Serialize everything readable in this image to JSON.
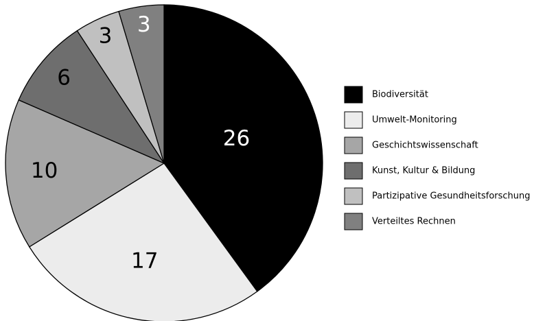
{
  "chart_data": {
    "type": "pie",
    "categories": [
      "Biodiversität",
      "Umwelt-Monitoring",
      "Geschichtswissenschaft",
      "Kunst, Kultur & Bildung",
      "Partizipative Gesundheitsforschung",
      "Verteiltes Rechnen"
    ],
    "values": [
      26,
      17,
      10,
      6,
      3,
      3
    ],
    "colors": [
      "#000000",
      "#ececec",
      "#a6a6a6",
      "#6e6e6e",
      "#c0c0c0",
      "#808080"
    ],
    "label_colors": [
      "#ffffff",
      "#000000",
      "#000000",
      "#000000",
      "#000000",
      "#ffffff"
    ],
    "legend": "right"
  }
}
